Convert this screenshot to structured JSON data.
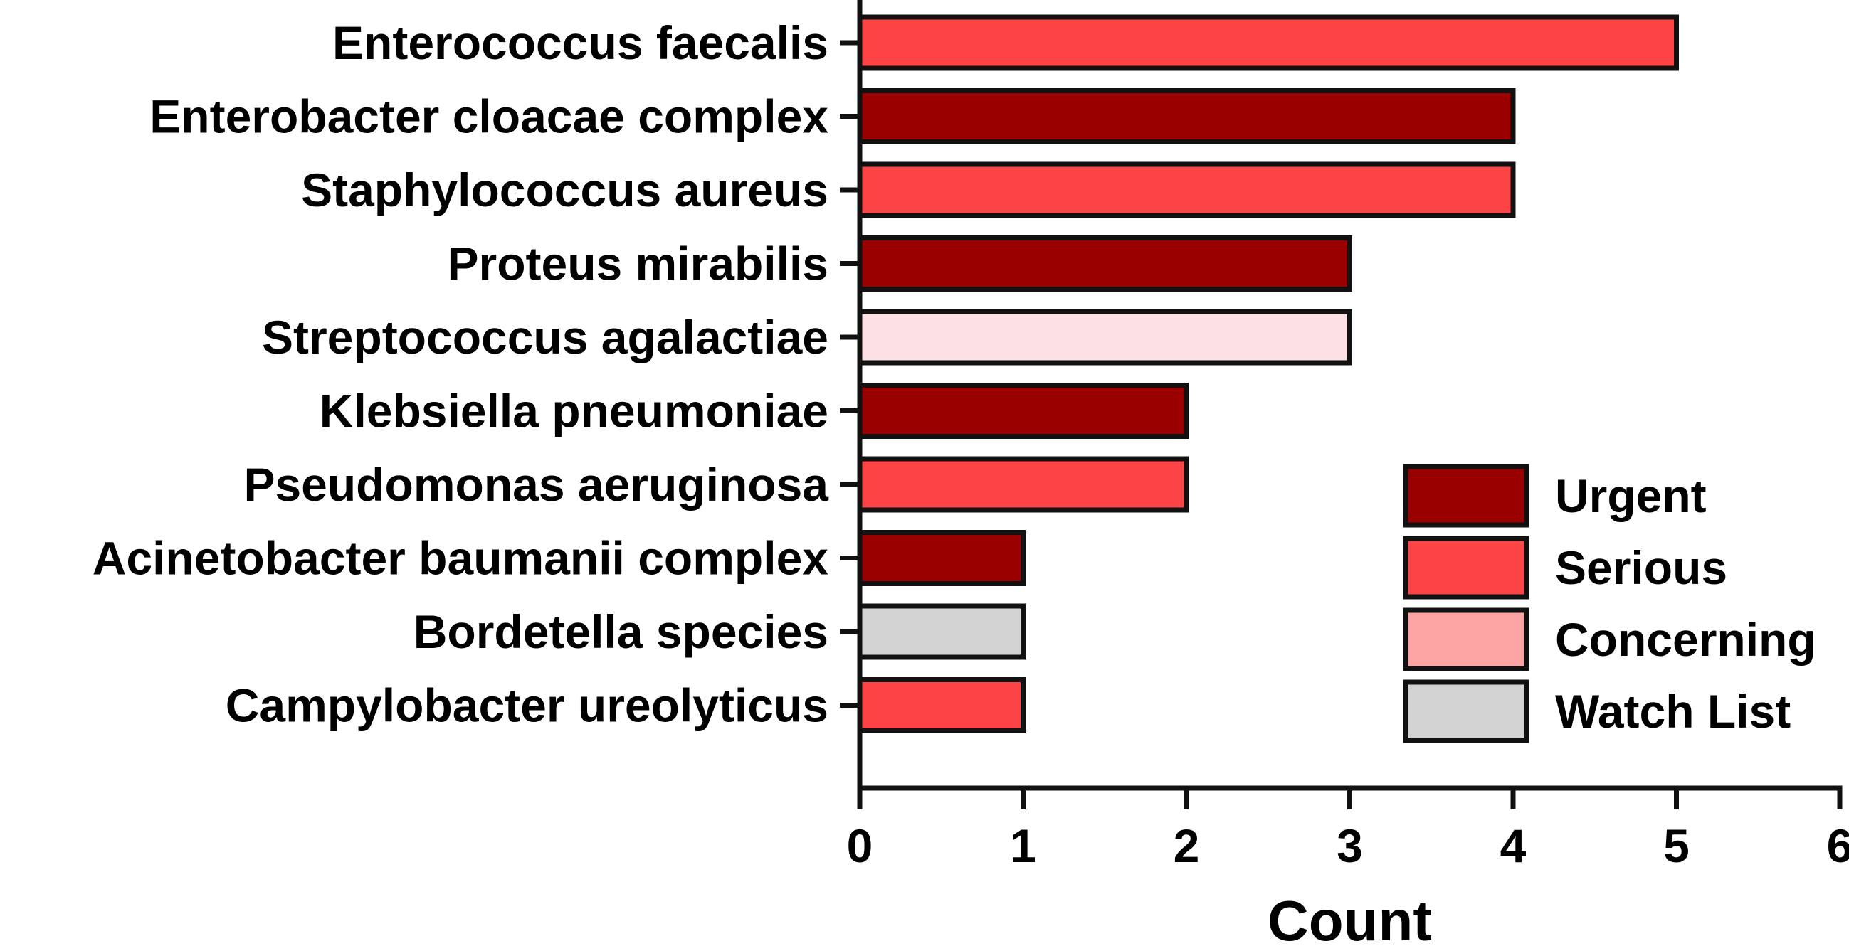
{
  "chart_data": {
    "type": "bar",
    "orientation": "horizontal",
    "categories": [
      "Enterococcus faecalis",
      "Enterobacter cloacae complex",
      "Staphylococcus aureus",
      "Proteus mirabilis",
      "Streptococcus agalactiae",
      "Klebsiella pneumoniae",
      "Pseudomonas aeruginosa",
      "Acinetobacter baumanii complex",
      "Bordetella species",
      "Campylobacter ureolyticus"
    ],
    "values": [
      5,
      4,
      4,
      3,
      3,
      2,
      2,
      1,
      1,
      1
    ],
    "bar_levels": [
      "Serious",
      "Urgent",
      "Serious",
      "Urgent",
      "Concerning",
      "Urgent",
      "Serious",
      "Urgent",
      "Watch List",
      "Serious"
    ],
    "levels": [
      {
        "name": "Urgent",
        "color": "#9b0000"
      },
      {
        "name": "Serious",
        "color": "#fc4447"
      },
      {
        "name": "Concerning",
        "color": "#fca3a3"
      },
      {
        "name": "Watch List",
        "color": "#d3d3d3"
      }
    ],
    "bar_color_overrides": {
      "Streptococcus agalactiae": "#fde0e3"
    },
    "xlabel": "Count",
    "ylabel": "",
    "title": "",
    "xlim": [
      0,
      6
    ],
    "xticks": [
      0,
      1,
      2,
      3,
      4,
      5,
      6
    ],
    "grid": false,
    "legend_position": "right"
  }
}
